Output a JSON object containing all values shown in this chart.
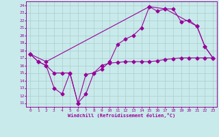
{
  "bg_color": "#c8eaea",
  "line_color": "#990099",
  "grid_color": "#aacccc",
  "xlabel": "Windchill (Refroidissement éolien,°C)",
  "ylabel_ticks": [
    11,
    12,
    13,
    14,
    15,
    16,
    17,
    18,
    19,
    20,
    21,
    22,
    23,
    24
  ],
  "xlabel_ticks": [
    0,
    1,
    2,
    3,
    4,
    5,
    6,
    7,
    8,
    9,
    10,
    11,
    12,
    13,
    14,
    15,
    16,
    17,
    18,
    19,
    20,
    21,
    22,
    23
  ],
  "xlim": [
    -0.5,
    23.5
  ],
  "ylim": [
    10.5,
    24.5
  ],
  "line1_x": [
    0,
    1,
    2,
    3,
    4,
    5,
    6,
    7,
    8,
    9,
    10,
    11,
    12,
    13,
    14,
    15,
    16,
    17,
    18,
    19,
    20,
    21,
    22,
    23
  ],
  "line1_y": [
    17.5,
    16.5,
    16.0,
    13.0,
    12.2,
    15.0,
    11.0,
    12.2,
    15.0,
    15.5,
    16.5,
    18.8,
    19.5,
    20.0,
    21.0,
    23.8,
    23.2,
    23.5,
    23.5,
    21.8,
    22.0,
    21.2,
    18.5,
    17.0
  ],
  "line2_x": [
    0,
    1,
    2,
    3,
    4,
    5,
    6,
    7,
    8,
    9,
    10,
    11,
    12,
    13,
    14,
    15,
    16,
    17,
    18,
    19,
    20,
    21,
    22,
    23
  ],
  "line2_y": [
    17.5,
    16.5,
    16.0,
    15.0,
    15.0,
    15.0,
    11.0,
    14.8,
    15.0,
    16.0,
    16.3,
    16.4,
    16.5,
    16.5,
    16.5,
    16.5,
    16.6,
    16.8,
    16.9,
    17.0,
    17.0,
    17.0,
    17.0,
    17.0
  ],
  "line3_x": [
    0,
    2,
    15,
    17,
    21,
    22,
    23
  ],
  "line3_y": [
    17.5,
    16.5,
    23.8,
    23.5,
    21.2,
    18.5,
    17.0
  ],
  "marker": "D",
  "markersize": 2.5,
  "linewidth": 0.8
}
